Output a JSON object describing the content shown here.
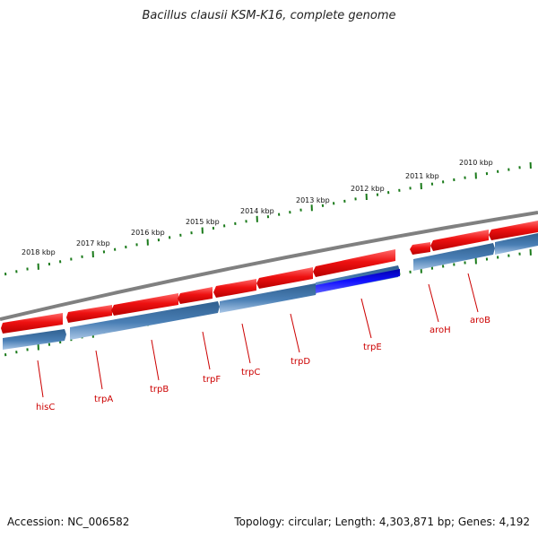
{
  "title": "Bacillus clausii KSM-K16, complete genome",
  "footer": {
    "accession": "Accession: NC_006582",
    "summary": "Topology: circular; Length: 4,303,871 bp; Genes: 4,192"
  },
  "scale_labels": [
    "2018 kbp",
    "2017 kbp",
    "2016 kbp",
    "2015 kbp",
    "2014 kbp",
    "2013 kbp",
    "2012 kbp",
    "2011 kbp",
    "2010 kbp"
  ],
  "gene_labels": [
    "hisC",
    "trpA",
    "trpB",
    "trpF",
    "trpC",
    "trpD",
    "trpE",
    "aroH",
    "aroB"
  ],
  "colors": {
    "backbone": "#808080",
    "forward_gene": "#ee1111",
    "reverse_gene": "#4a7fb5",
    "highlight_gene": "#0000dd",
    "tick": "#1a7a1a",
    "label": "#cc0000"
  }
}
